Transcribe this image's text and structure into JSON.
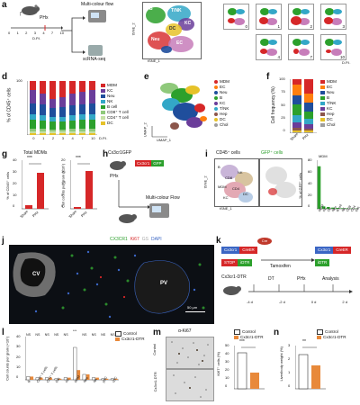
{
  "panels": {
    "a": {
      "letter": "a",
      "phx_label": "PHx",
      "time_ticks": [
        "0",
        "1",
        "2",
        "3",
        "4",
        "7",
        "10"
      ],
      "time_unit": "D.P.I.",
      "method_flow": "Multi-colour flow",
      "method_seq": "scRNA-seq",
      "tsne_x": "tSNE_1",
      "tsne_y": "tSNE_2",
      "cluster_labels": [
        "B",
        "T/NK",
        "KC",
        "DC",
        "Neu",
        "EC"
      ],
      "small_panels": [
        "0",
        "1",
        "2",
        "3",
        "4",
        "7",
        "10"
      ],
      "small_unit": "D.P.I."
    },
    "d": {
      "letter": "d",
      "ylabel": "% of CD45⁺ cells",
      "ymax": "100",
      "xunit": "D.P.I.",
      "legend": [
        "MDM",
        "KC",
        "Neu",
        "NK",
        "B cell",
        "CD8⁺ T cell",
        "CD4⁺ T cell",
        "DC"
      ]
    },
    "e": {
      "letter": "e",
      "xlabel": "UMAP_1",
      "ylabel": "UMAP_2",
      "legend": [
        "MDM",
        "EC",
        "Neu",
        "B",
        "KC",
        "T/NK",
        "Hep",
        "DC",
        "Chol"
      ]
    },
    "f": {
      "letter": "f",
      "ylabel": "Cell frequency (%)",
      "yticks": [
        "100",
        "75",
        "50",
        "25",
        "0"
      ],
      "xcats": [
        "Sham",
        "PHx"
      ],
      "legend": [
        "MDM",
        "EC",
        "Neu",
        "B",
        "T/NK",
        "KC",
        "Hep",
        "DC",
        "Chol"
      ]
    },
    "g": {
      "letter": "g",
      "title": "Total MDMs",
      "ylabel1": "% of CD45⁺ cells",
      "ylabel2": "Cell counts per gram (×10⁵)",
      "sig1": "***",
      "sig2": "***",
      "yticks1": [
        "40",
        "30",
        "20",
        "10",
        "0"
      ],
      "yticks2": [
        "20",
        "15",
        "10",
        "5",
        "0"
      ],
      "xcats": [
        "Sham",
        "PHx"
      ]
    },
    "h": {
      "letter": "h",
      "mouse_label": "Cx3cr1GFP",
      "gene1": "Cx3cr1",
      "gene2": "GFP",
      "phx_label": "PHx",
      "flow_label": "Multi-colour Flow"
    },
    "i": {
      "letter": "i",
      "title1": "CD45⁺ cells",
      "title2": "GFP⁺ cells",
      "bar_ylabel": "% of GFP⁺ cells",
      "bar_yticks": [
        "80",
        "60",
        "40",
        "20",
        "0"
      ],
      "bar_top_label": "MDM",
      "bar_cats": [
        "MDM",
        "KC",
        "DC",
        "Neu",
        "B cell",
        "NK",
        "CD8",
        "CD4",
        "Eos"
      ],
      "bar_values": [
        70,
        4,
        3,
        2,
        1.5,
        1,
        0.8,
        0.6,
        0.4
      ],
      "tsne_labels": [
        "B",
        "NK",
        "CD8",
        "MDM",
        "CD4",
        "DC",
        "KC"
      ]
    },
    "j": {
      "letter": "j",
      "stain_cx3cr1": "CX3CR1",
      "stain_ki67": "Ki67",
      "stain_gs": "GS",
      "stain_dapi": "DAPI",
      "cv": "CV",
      "pv": "PV",
      "scale": "50 μm"
    },
    "k": {
      "letter": "k",
      "cre": "Cre",
      "gene1": "Cx3cr1",
      "creer": "CreER",
      "loxp_stop": "STOP",
      "dtr": "iDTR",
      "tamoxifen": "Tamoxifen",
      "mouse": "Cx3cr1-DTR",
      "timeline": [
        "-4 d",
        "-2 d",
        "0 d",
        "2 d"
      ],
      "events": [
        "DT",
        "PHx",
        "Analysis"
      ]
    },
    "l": {
      "letter": "l",
      "ylabel": "Cell counts per gram (×10⁵)",
      "yticks": [
        "40",
        "30",
        "20",
        "10",
        "0"
      ],
      "legend": [
        "Control",
        "Cx3cr1-DTR"
      ],
      "cats": [
        "B",
        "CD8⁺ T cells",
        "CD4⁺ T cells",
        "Eos",
        "KC",
        "MDM",
        "Neu",
        "NK",
        "pDC",
        "cDC"
      ],
      "sig": [
        "NS",
        "NS",
        "NS",
        "NS",
        "NS",
        "***",
        "NS",
        "NS",
        "NS",
        "NS"
      ],
      "control": [
        3,
        2,
        2,
        1,
        2,
        30,
        5,
        2,
        1,
        1
      ],
      "dtr": [
        3,
        2,
        2,
        1,
        2,
        9,
        5,
        2,
        1,
        1
      ]
    },
    "m": {
      "letter": "m",
      "title": "α-Ki67",
      "row1": "Control",
      "row2": "Cx3cr1-DTR",
      "ylabel": "Ki67⁺ cells (%)",
      "yticks": [
        "50",
        "40",
        "30",
        "20",
        "10",
        "0"
      ],
      "sig": "***",
      "legend": [
        "Control",
        "Cx3cr1-DTR"
      ]
    },
    "n": {
      "letter": "n",
      "ylabel": "Liver/body weight (%)",
      "yticks": [
        "3",
        "2",
        "1",
        "0"
      ],
      "sig": "**",
      "legend": [
        "Control",
        "Cx3cr1-DTR"
      ]
    }
  },
  "colors": {
    "MDM": "#d62728",
    "KC": "#6a3d9a",
    "Neu": "#1f4e9c",
    "NK": "#33a7c7",
    "B": "#2ca02c",
    "CD8": "#8fc97b",
    "CD4": "#c5e0a5",
    "DC": "#e6c229",
    "EC": "#ff7f0e",
    "Hep": "#8c564b",
    "Chol": "#9e9e9e",
    "Control": "#ffffff",
    "DTR": "#e8893a",
    "gfp": "#2ca02c"
  }
}
